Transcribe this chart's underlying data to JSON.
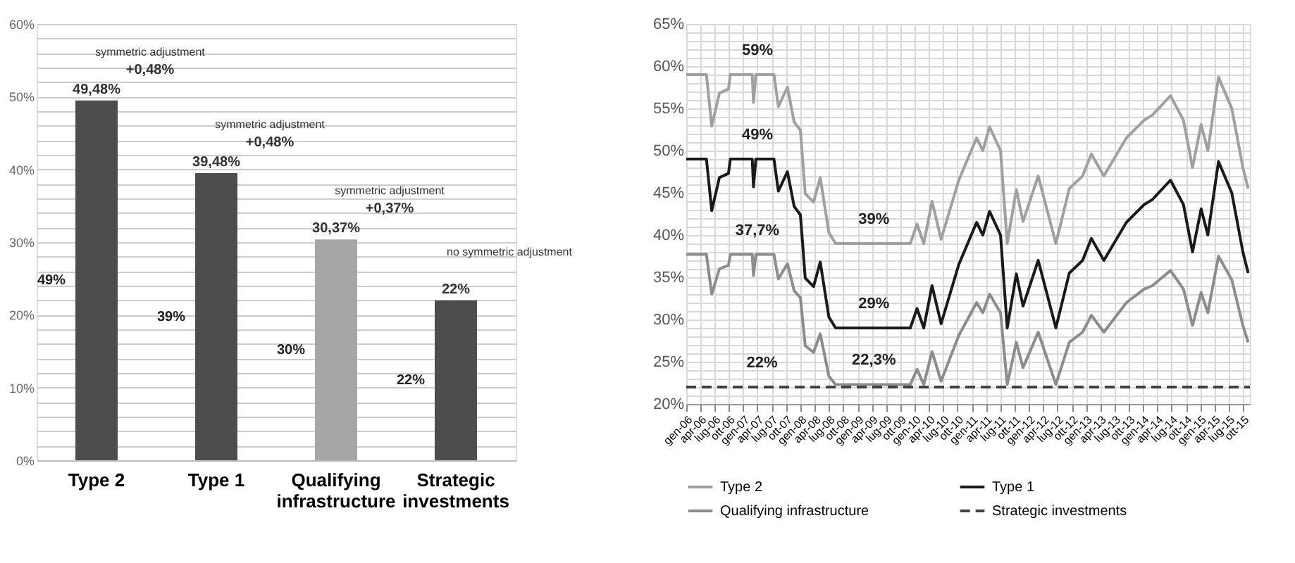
{
  "chart_data": [
    {
      "type": "bar",
      "categories": [
        "Type 2",
        "Type 1",
        "Qualifying infrastructure",
        "Strategic investments"
      ],
      "values": [
        49.48,
        39.48,
        30.37,
        22
      ],
      "colors": [
        "#4d4d4d",
        "#4d4d4d",
        "#a6a6a6",
        "#4d4d4d"
      ],
      "value_labels": [
        "49,48%",
        "39,48%",
        "30,37%",
        "22%"
      ],
      "ylim": [
        0,
        60
      ],
      "yticks": [
        {
          "value": 0,
          "label": "0%"
        },
        {
          "value": 2,
          "label": null
        },
        {
          "value": 4,
          "label": null
        },
        {
          "value": 6,
          "label": null
        },
        {
          "value": 8,
          "label": null
        },
        {
          "value": 10,
          "label": "10%"
        },
        {
          "value": 12,
          "label": null
        },
        {
          "value": 14,
          "label": null
        },
        {
          "value": 16,
          "label": null
        },
        {
          "value": 18,
          "label": null
        },
        {
          "value": 20,
          "label": "20%"
        },
        {
          "value": 22,
          "label": null
        },
        {
          "value": 24,
          "label": null
        },
        {
          "value": 26,
          "label": null
        },
        {
          "value": 28,
          "label": null
        },
        {
          "value": 30,
          "label": "30%"
        },
        {
          "value": 32,
          "label": null
        },
        {
          "value": 34,
          "label": null
        },
        {
          "value": 36,
          "label": null
        },
        {
          "value": 38,
          "label": null
        },
        {
          "value": 40,
          "label": "40%"
        },
        {
          "value": 42,
          "label": null
        },
        {
          "value": 44,
          "label": null
        },
        {
          "value": 46,
          "label": null
        },
        {
          "value": 48,
          "label": null
        },
        {
          "value": 50,
          "label": "50%"
        },
        {
          "value": 52,
          "label": null
        },
        {
          "value": 54,
          "label": null
        },
        {
          "value": 56,
          "label": null
        },
        {
          "value": 58,
          "label": null
        },
        {
          "value": 60,
          "label": "60%"
        }
      ],
      "grid": "y",
      "annotations": [
        "symmetric adjustment",
        "+0,48%",
        "49%",
        "symmetric adjustment",
        "+0,48%",
        "39%",
        "symmetric adjustment",
        "+0,37%",
        "30%",
        "no symmetric adjustment",
        "22%"
      ]
    },
    {
      "type": "line",
      "x": [
        "2006-01-01",
        "2006-05-10",
        "2006-06-13",
        "2006-08-01",
        "2006-09-28",
        "2006-10-10",
        "2007-02-27",
        "2007-03-07",
        "2007-03-22",
        "2007-07-16",
        "2007-08-13",
        "2007-10-10",
        "2007-11-22",
        "2008-01-01",
        "2008-02-01",
        "2008-03-25",
        "2008-05-07",
        "2008-07-01",
        "2008-08-13",
        "2009-12-04",
        "2010-01-16",
        "2010-02-28",
        "2010-04-22",
        "2010-06-19",
        "2010-10-10",
        "2011-02-01",
        "2011-03-13",
        "2011-04-25",
        "2011-07-04",
        "2011-08-16",
        "2011-10-13",
        "2011-11-25",
        "2012-03-01",
        "2012-06-22",
        "2012-09-16",
        "2012-12-10",
        "2013-02-04",
        "2013-04-25",
        "2013-09-16",
        "2014-01-07",
        "2014-03-01",
        "2014-06-25",
        "2014-09-16",
        "2014-11-13",
        "2015-01-07",
        "2015-02-19",
        "2015-04-28",
        "2015-07-22",
        "2015-10-01",
        "2015-11-04"
      ],
      "series": [
        {
          "name": "Type 2",
          "color": "#a0a0a0",
          "values": [
            59,
            59,
            52.9,
            56.8,
            57.3,
            59,
            59,
            55.7,
            59,
            59,
            55.2,
            57.5,
            53.4,
            52.4,
            44.9,
            43.9,
            46.8,
            40.3,
            39,
            39,
            41.3,
            39,
            44,
            39.5,
            46.5,
            51.5,
            50,
            52.8,
            50,
            39,
            45.4,
            41.6,
            47,
            39,
            45.5,
            47,
            49.6,
            47,
            51.5,
            53.6,
            54.2,
            56.5,
            53.6,
            48,
            53.1,
            50,
            58.7,
            55,
            48,
            45.5
          ]
        },
        {
          "name": "Type 1",
          "color": "#1a1a1a",
          "values": [
            49,
            49,
            42.9,
            46.8,
            47.3,
            49,
            49,
            45.7,
            49,
            49,
            45.2,
            47.5,
            43.4,
            42.4,
            34.9,
            33.9,
            36.8,
            30.3,
            29,
            29,
            31.3,
            29,
            34,
            29.5,
            36.5,
            41.5,
            40,
            42.8,
            40,
            29,
            35.4,
            31.6,
            37,
            29,
            35.5,
            37,
            39.6,
            37,
            41.5,
            43.6,
            44.2,
            46.5,
            43.6,
            38,
            43.1,
            40,
            48.7,
            45,
            38,
            35.5
          ]
        },
        {
          "name": "Qualifying infrastructure",
          "color": "#8c8c8c",
          "values": [
            37.7,
            37.7,
            33.0,
            36.0,
            36.4,
            37.7,
            37.7,
            35.2,
            37.7,
            37.7,
            34.8,
            36.6,
            33.4,
            32.6,
            26.9,
            26.1,
            28.3,
            23.3,
            22.3,
            22.3,
            24.1,
            22.3,
            26.2,
            22.7,
            28.1,
            32.0,
            30.8,
            33.0,
            30.8,
            22.3,
            27.3,
            24.3,
            28.5,
            22.3,
            27.3,
            28.5,
            30.5,
            28.5,
            32.0,
            33.6,
            34.0,
            35.8,
            33.6,
            29.3,
            33.2,
            30.8,
            37.5,
            34.7,
            29.3,
            27.3
          ]
        },
        {
          "name": "Strategic investments",
          "color": "#404040",
          "line_style": "dashed",
          "x": [
            "2006-01-01",
            "2015-11-15"
          ],
          "values": [
            22,
            22
          ]
        }
      ],
      "xlim": [
        "2006-01-01",
        "2015-11-15"
      ],
      "xticks": [
        {
          "value": "2006-01-01",
          "label": "gen-06"
        },
        {
          "value": "2006-04-01",
          "label": "apr-06"
        },
        {
          "value": "2006-07-01",
          "label": "lug-06"
        },
        {
          "value": "2006-10-01",
          "label": "ott-06"
        },
        {
          "value": "2007-01-01",
          "label": "gen-07"
        },
        {
          "value": "2007-04-01",
          "label": "apr-07"
        },
        {
          "value": "2007-07-01",
          "label": "lug-07"
        },
        {
          "value": "2007-10-01",
          "label": "ott-07"
        },
        {
          "value": "2008-01-01",
          "label": "gen-08"
        },
        {
          "value": "2008-04-01",
          "label": "apr-08"
        },
        {
          "value": "2008-07-01",
          "label": "lug-08"
        },
        {
          "value": "2008-10-01",
          "label": "ott-08"
        },
        {
          "value": "2009-01-01",
          "label": "gen-09"
        },
        {
          "value": "2009-04-01",
          "label": "apr-09"
        },
        {
          "value": "2009-07-01",
          "label": "lug-09"
        },
        {
          "value": "2009-10-01",
          "label": "ott-09"
        },
        {
          "value": "2010-01-01",
          "label": "gen-10"
        },
        {
          "value": "2010-04-01",
          "label": "apr-10"
        },
        {
          "value": "2010-07-01",
          "label": "lug-10"
        },
        {
          "value": "2010-10-01",
          "label": "ott-10"
        },
        {
          "value": "2011-01-01",
          "label": "gen-11"
        },
        {
          "value": "2011-04-01",
          "label": "apr-11"
        },
        {
          "value": "2011-07-01",
          "label": "lug-11"
        },
        {
          "value": "2011-10-01",
          "label": "ott-11"
        },
        {
          "value": "2012-01-01",
          "label": "gen-12"
        },
        {
          "value": "2012-04-01",
          "label": "apr-12"
        },
        {
          "value": "2012-07-01",
          "label": "lug-12"
        },
        {
          "value": "2012-10-01",
          "label": "ott-12"
        },
        {
          "value": "2013-01-01",
          "label": "gen-13"
        },
        {
          "value": "2013-04-01",
          "label": "apr-13"
        },
        {
          "value": "2013-07-01",
          "label": "lug-13"
        },
        {
          "value": "2013-10-01",
          "label": "ott-13"
        },
        {
          "value": "2014-01-01",
          "label": "gen-14"
        },
        {
          "value": "2014-04-01",
          "label": "apr-14"
        },
        {
          "value": "2014-07-01",
          "label": "lug-14"
        },
        {
          "value": "2014-10-01",
          "label": "ott-14"
        },
        {
          "value": "2015-01-01",
          "label": "gen-15"
        },
        {
          "value": "2015-04-01",
          "label": "apr-15"
        },
        {
          "value": "2015-07-01",
          "label": "lug-15"
        },
        {
          "value": "2015-10-01",
          "label": "ott-15"
        }
      ],
      "ylim": [
        20,
        65
      ],
      "yticks": [
        {
          "value": 20,
          "label": "20%"
        },
        {
          "value": 21,
          "label": null
        },
        {
          "value": 22,
          "label": null
        },
        {
          "value": 23,
          "label": null
        },
        {
          "value": 24,
          "label": null
        },
        {
          "value": 25,
          "label": "25%"
        },
        {
          "value": 26,
          "label": null
        },
        {
          "value": 27,
          "label": null
        },
        {
          "value": 28,
          "label": null
        },
        {
          "value": 29,
          "label": null
        },
        {
          "value": 30,
          "label": "30%"
        },
        {
          "value": 31,
          "label": null
        },
        {
          "value": 32,
          "label": null
        },
        {
          "value": 33,
          "label": null
        },
        {
          "value": 34,
          "label": null
        },
        {
          "value": 35,
          "label": "35%"
        },
        {
          "value": 36,
          "label": null
        },
        {
          "value": 37,
          "label": null
        },
        {
          "value": 38,
          "label": null
        },
        {
          "value": 39,
          "label": null
        },
        {
          "value": 40,
          "label": "40%"
        },
        {
          "value": 41,
          "label": null
        },
        {
          "value": 42,
          "label": null
        },
        {
          "value": 43,
          "label": null
        },
        {
          "value": 44,
          "label": null
        },
        {
          "value": 45,
          "label": "45%"
        },
        {
          "value": 46,
          "label": null
        },
        {
          "value": 47,
          "label": null
        },
        {
          "value": 48,
          "label": null
        },
        {
          "value": 49,
          "label": null
        },
        {
          "value": 50,
          "label": "50%"
        },
        {
          "value": 51,
          "label": null
        },
        {
          "value": 52,
          "label": null
        },
        {
          "value": 53,
          "label": null
        },
        {
          "value": 54,
          "label": null
        },
        {
          "value": 55,
          "label": "55%"
        },
        {
          "value": 56,
          "label": null
        },
        {
          "value": 57,
          "label": null
        },
        {
          "value": 58,
          "label": null
        },
        {
          "value": 59,
          "label": null
        },
        {
          "value": 60,
          "label": "60%"
        },
        {
          "value": 61,
          "label": null
        },
        {
          "value": 62,
          "label": null
        },
        {
          "value": 63,
          "label": null
        },
        {
          "value": 64,
          "label": null
        },
        {
          "value": 65,
          "label": "65%"
        }
      ],
      "grid": true,
      "legend": "bottom",
      "annotations": [
        {
          "text": "59%",
          "x": "2007-04-01",
          "y": 59
        },
        {
          "text": "49%",
          "x": "2007-04-01",
          "y": 49
        },
        {
          "text": "37,7%",
          "x": "2007-04-01",
          "y": 37.7
        },
        {
          "text": "39%",
          "x": "2009-04-15",
          "y": 39
        },
        {
          "text": "29%",
          "x": "2009-04-15",
          "y": 29
        },
        {
          "text": "22,3%",
          "x": "2009-04-15",
          "y": 22.3
        },
        {
          "text": "22%",
          "x": "2007-05-01",
          "y": 22
        }
      ]
    }
  ]
}
